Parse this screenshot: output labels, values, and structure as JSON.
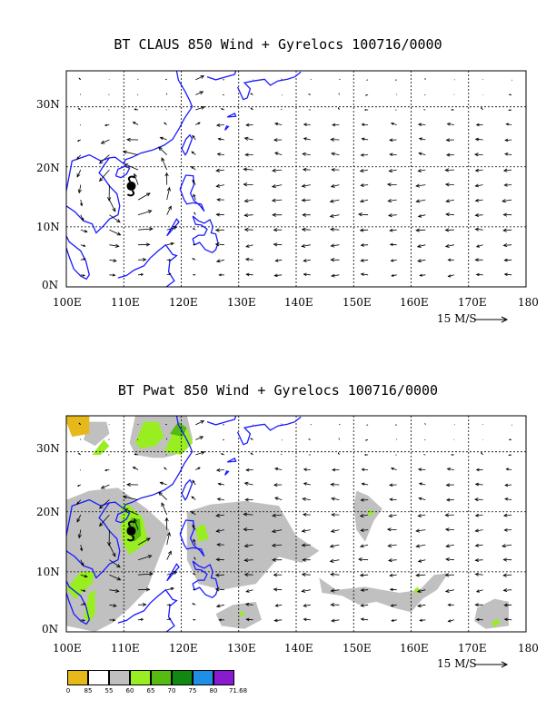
{
  "colors": {
    "coastline": "#1a1aff",
    "grid": "#000000",
    "arrow": "#000000",
    "pwat_shading": "#c0c0c0",
    "pwat_high": "#99ee22"
  },
  "panel1": {
    "title": "BT CLAUS 850 Wind + Gyrelocs 100716/0000",
    "lat_labels": [
      "30N",
      "20N",
      "10N",
      "0N"
    ],
    "lon_labels": [
      "100E",
      "110E",
      "120E",
      "130E",
      "140E",
      "150E",
      "160E",
      "170E",
      "180"
    ],
    "scale_label": "15 M/S",
    "storm_icon": "typhoon-symbol-icon"
  },
  "panel2": {
    "title": "BT Pwat 850 Wind + Gyrelocs 100716/0000",
    "lat_labels": [
      "30N",
      "20N",
      "10N",
      "0N"
    ],
    "lon_labels": [
      "100E",
      "110E",
      "120E",
      "130E",
      "140E",
      "150E",
      "160E",
      "170E",
      "180"
    ],
    "scale_label": "15 M/S",
    "storm_icon": "typhoon-symbol-icon"
  },
  "map_extent": {
    "lon_min": 100,
    "lon_max": 180,
    "lat_min": 0,
    "lat_max": 36
  },
  "storm_location": {
    "lon": 111.3,
    "lat": 16.8
  },
  "legend": {
    "labels": [
      "0",
      "85",
      "55",
      "60",
      "65",
      "70",
      "75",
      "80",
      "71.68"
    ],
    "colors": [
      "#e6b81a",
      "#ffffff",
      "#c0c0c0",
      "#99ee22",
      "#55bb11",
      "#118811",
      "#1f8fe6",
      "#1a2ecc",
      "#8a1ad0"
    ]
  }
}
